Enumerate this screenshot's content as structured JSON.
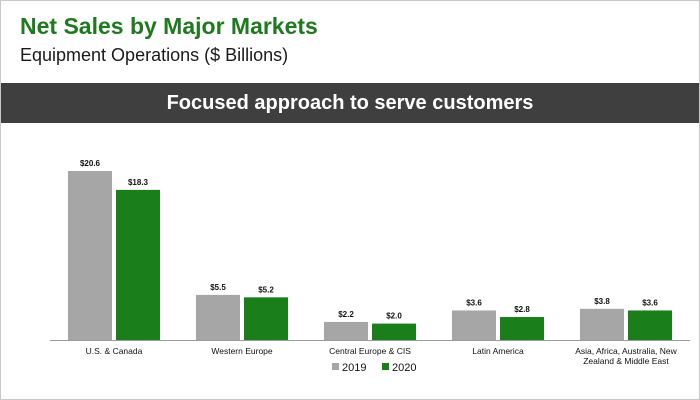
{
  "header": {
    "title": "Net Sales by Major Markets",
    "subtitle": "Equipment Operations ($ Billions)"
  },
  "banner": {
    "text": "Focused approach to serve customers"
  },
  "colors": {
    "series_2019": "#a6a6a6",
    "series_2020": "#1a7f1a",
    "title_green": "#1f7a1f",
    "banner_bg": "#3f3f3f"
  },
  "chart_data": {
    "type": "bar",
    "title": "",
    "xlabel": "",
    "ylabel": "",
    "ylim": [
      0,
      22
    ],
    "grid": false,
    "legend": "bottom-center",
    "categories": [
      [
        "U.S. & Canada"
      ],
      [
        "Western Europe"
      ],
      [
        "Central Europe & CIS"
      ],
      [
        "Latin America"
      ],
      [
        "Asia, Africa, Australia, New",
        "Zealand & Middle East"
      ]
    ],
    "series": [
      {
        "name": "2019",
        "values": [
          20.6,
          5.5,
          2.2,
          3.6,
          3.8
        ],
        "labels": [
          "$20.6",
          "$5.5",
          "$2.2",
          "$3.6",
          "$3.8"
        ]
      },
      {
        "name": "2020",
        "values": [
          18.3,
          5.2,
          2.0,
          2.8,
          3.6
        ],
        "labels": [
          "$18.3",
          "$5.2",
          "$2.0",
          "$2.8",
          "$3.6"
        ]
      }
    ]
  }
}
